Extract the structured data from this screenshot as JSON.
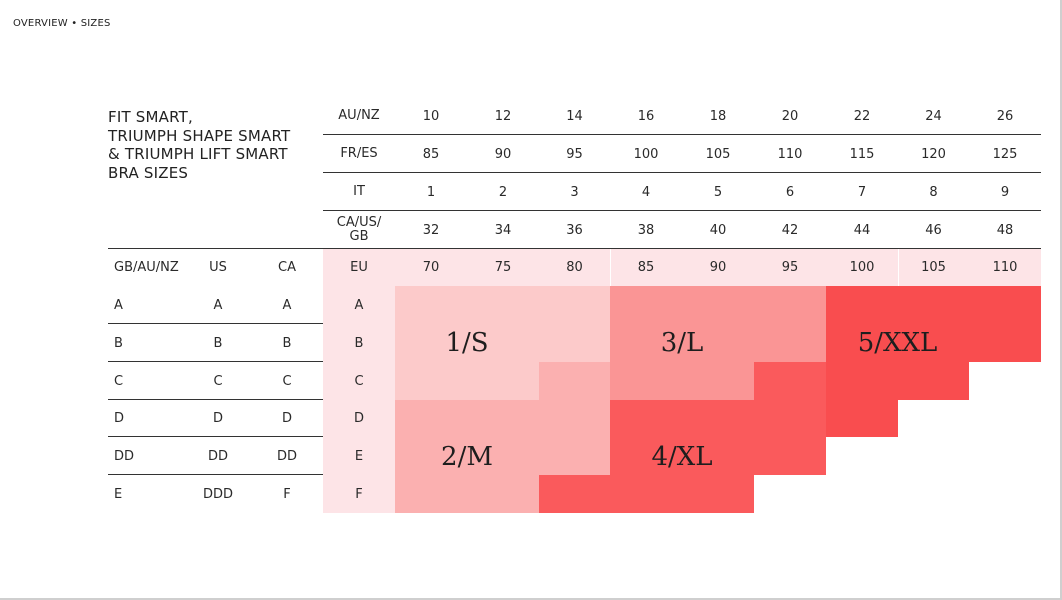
{
  "breadcrumb": "OVERVIEW • SIZES",
  "title_lines": [
    "FIT SMART,",
    "TRIUMPH SHAPE SMART",
    "& TRIUMPH LIFT SMART",
    "BRA SIZES"
  ],
  "band_rows": [
    {
      "label": "AU/NZ",
      "values": [
        "10",
        "12",
        "14",
        "16",
        "18",
        "20",
        "22",
        "24",
        "26"
      ]
    },
    {
      "label": "FR/ES",
      "values": [
        "85",
        "90",
        "95",
        "100",
        "105",
        "110",
        "115",
        "120",
        "125"
      ]
    },
    {
      "label": "IT",
      "values": [
        "1",
        "2",
        "3",
        "4",
        "5",
        "6",
        "7",
        "8",
        "9"
      ]
    },
    {
      "label": "CA/US/\nGB",
      "values": [
        "32",
        "34",
        "36",
        "38",
        "40",
        "42",
        "44",
        "46",
        "48"
      ]
    }
  ],
  "eu_row": {
    "headers": [
      "GB/AU/NZ",
      "US",
      "CA"
    ],
    "label": "EU",
    "values": [
      "70",
      "75",
      "80",
      "85",
      "90",
      "95",
      "100",
      "105",
      "110"
    ]
  },
  "cup_rows": [
    [
      "A",
      "A",
      "A",
      "A"
    ],
    [
      "B",
      "B",
      "B",
      "B"
    ],
    [
      "C",
      "C",
      "C",
      "C"
    ],
    [
      "D",
      "D",
      "D",
      "D"
    ],
    [
      "DD",
      "DD",
      "DD",
      "E"
    ],
    [
      "E",
      "DDD",
      "F",
      "F"
    ]
  ],
  "zone_colors": {
    "s": "#fccaca",
    "m": "#fbb0b0",
    "l": "#fa9595",
    "xl": "#fa5a5c",
    "xxl": "#f94d4f"
  },
  "zones": [
    {
      "size": "1/S",
      "cells": [
        [
          0,
          0
        ],
        [
          0,
          1
        ],
        [
          0,
          2
        ],
        [
          1,
          0
        ],
        [
          1,
          1
        ],
        [
          1,
          2
        ],
        [
          2,
          0
        ],
        [
          2,
          1
        ]
      ]
    },
    {
      "size": "2/M",
      "cells": [
        [
          2,
          2
        ],
        [
          3,
          0
        ],
        [
          3,
          1
        ],
        [
          3,
          2
        ],
        [
          4,
          0
        ],
        [
          4,
          1
        ],
        [
          4,
          2
        ],
        [
          5,
          0
        ],
        [
          5,
          1
        ]
      ]
    },
    {
      "size": "3/L",
      "cells": [
        [
          0,
          3
        ],
        [
          0,
          4
        ],
        [
          0,
          5
        ],
        [
          1,
          3
        ],
        [
          1,
          4
        ],
        [
          1,
          5
        ],
        [
          2,
          3
        ],
        [
          2,
          4
        ]
      ]
    },
    {
      "size": "4/XL",
      "cells": [
        [
          5,
          2
        ],
        [
          2,
          5
        ],
        [
          3,
          3
        ],
        [
          3,
          4
        ],
        [
          3,
          5
        ],
        [
          4,
          3
        ],
        [
          4,
          4
        ],
        [
          4,
          5
        ],
        [
          5,
          3
        ],
        [
          5,
          4
        ]
      ]
    },
    {
      "size": "5/XXL",
      "cells": [
        [
          0,
          6
        ],
        [
          0,
          7
        ],
        [
          0,
          8
        ],
        [
          1,
          6
        ],
        [
          1,
          7
        ],
        [
          1,
          8
        ],
        [
          2,
          6
        ],
        [
          2,
          7
        ],
        [
          3,
          6
        ]
      ]
    }
  ]
}
